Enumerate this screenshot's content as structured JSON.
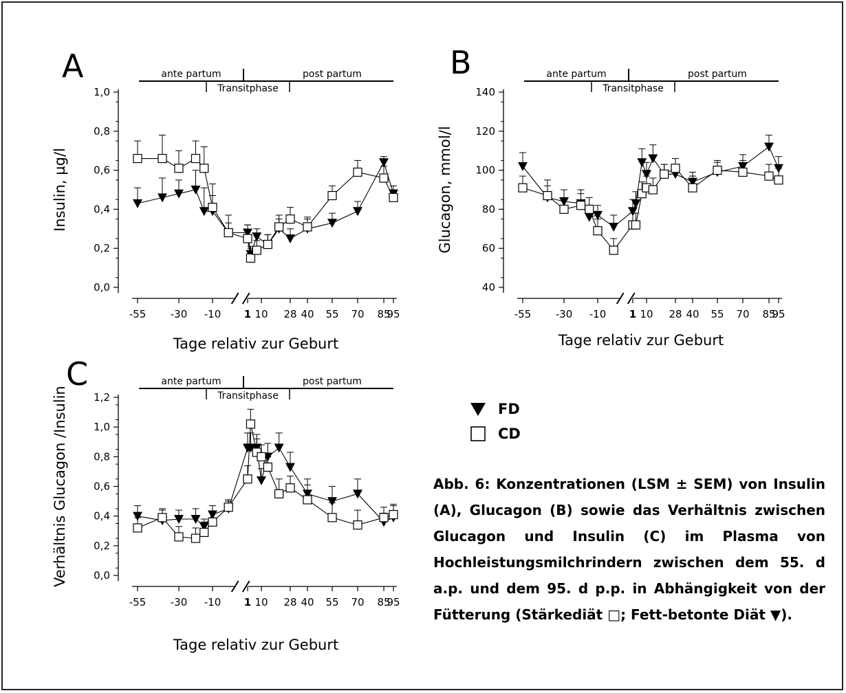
{
  "figure": {
    "caption": "Abb. 6: Konzentrationen (LSM ± SEM) von Insulin (A), Glucagon (B) sowie das Verhältnis zwischen Glucagon und Insulin (C) im Plasma von Hochleistungsmilchrindern zwischen dem 55. d a.p. und dem 95. d p.p. in Abhängigkeit von der Fütterung (Stärkediät □; Fett-betonte Diät ▼)."
  },
  "legend": [
    {
      "symbol": "filled-triangle-down",
      "label": "FD"
    },
    {
      "symbol": "open-square",
      "label": "CD"
    }
  ],
  "phase_labels": {
    "ante": "ante partum",
    "post": "post partum",
    "transit": "Transitphase"
  },
  "colors": {
    "ink": "#000000",
    "marker_open_fill": "#ffffff"
  },
  "chart_data": [
    {
      "panel": "A",
      "type": "line",
      "ylabel": "Insulin, µg/l",
      "xlabel": "Tage relativ zur Geburt",
      "ylim": [
        0.0,
        1.0
      ],
      "yticks": [
        "0,0",
        "0,2",
        "0,4",
        "0,6",
        "0,8",
        "1,0"
      ],
      "xticks": [
        "-55",
        "-30",
        "-10",
        "1",
        "10",
        "28",
        "40",
        "55",
        "70",
        "85",
        "95"
      ],
      "axis_break": "between -10 and 1",
      "series": [
        {
          "name": "FD",
          "marker": "filled-triangle-down",
          "x": [
            -55,
            -40,
            -30,
            -20,
            -15,
            -10,
            -5,
            1,
            3,
            7,
            14,
            21,
            28,
            40,
            55,
            70,
            85,
            95
          ],
          "y": [
            0.43,
            0.46,
            0.48,
            0.5,
            0.39,
            0.39,
            0.28,
            0.28,
            0.17,
            0.26,
            0.22,
            0.3,
            0.25,
            0.3,
            0.33,
            0.39,
            0.64,
            0.48
          ],
          "err": [
            0.08,
            0.1,
            0.07,
            0.1,
            0.12,
            0.08,
            0.05,
            0.04,
            0.04,
            0.04,
            0.05,
            0.05,
            0.05,
            0.05,
            0.05,
            0.05,
            0.03,
            0.04
          ]
        },
        {
          "name": "CD",
          "marker": "open-square",
          "x": [
            -55,
            -40,
            -30,
            -20,
            -15,
            -10,
            -5,
            1,
            3,
            7,
            14,
            21,
            28,
            40,
            55,
            70,
            85,
            95
          ],
          "y": [
            0.66,
            0.66,
            0.61,
            0.66,
            0.61,
            0.41,
            0.28,
            0.25,
            0.15,
            0.19,
            0.22,
            0.31,
            0.35,
            0.31,
            0.47,
            0.59,
            0.56,
            0.46
          ],
          "err": [
            0.09,
            0.12,
            0.09,
            0.09,
            0.11,
            0.12,
            0.09,
            0.07,
            0.05,
            0.05,
            0.05,
            0.06,
            0.06,
            0.05,
            0.05,
            0.06,
            0.06,
            0.04
          ]
        }
      ]
    },
    {
      "panel": "B",
      "type": "line",
      "ylabel": "Glucagon, mmol/l",
      "xlabel": "Tage relativ zur Geburt",
      "ylim": [
        40,
        140
      ],
      "yticks": [
        "40",
        "60",
        "80",
        "100",
        "120",
        "140"
      ],
      "xticks": [
        "-55",
        "-30",
        "-10",
        "1",
        "10",
        "28",
        "40",
        "55",
        "70",
        "85",
        "95"
      ],
      "axis_break": "between -10 and 1",
      "series": [
        {
          "name": "FD",
          "marker": "filled-triangle-down",
          "x": [
            -55,
            -40,
            -30,
            -20,
            -15,
            -10,
            -5,
            1,
            3,
            7,
            10,
            14,
            21,
            28,
            40,
            55,
            70,
            85,
            95
          ],
          "y": [
            102,
            86,
            84,
            83,
            76,
            77,
            71,
            79,
            83,
            104,
            98,
            106,
            98,
            98,
            94,
            99,
            102,
            112,
            101
          ],
          "err": [
            7,
            6,
            6,
            7,
            5,
            5,
            6,
            6,
            6,
            7,
            6,
            7,
            5,
            5,
            5,
            5,
            6,
            6,
            6
          ]
        },
        {
          "name": "CD",
          "marker": "open-square",
          "x": [
            -55,
            -40,
            -30,
            -20,
            -15,
            -10,
            -5,
            1,
            3,
            7,
            10,
            14,
            21,
            28,
            40,
            55,
            70,
            85,
            95
          ],
          "y": [
            91,
            87,
            80,
            82,
            80,
            69,
            59,
            72,
            72,
            88,
            91,
            90,
            98,
            101,
            91,
            100,
            99,
            97,
            95
          ],
          "err": [
            6,
            8,
            6,
            6,
            6,
            6,
            6,
            6,
            6,
            6,
            6,
            6,
            5,
            5,
            6,
            5,
            6,
            6,
            6
          ]
        }
      ]
    },
    {
      "panel": "C",
      "type": "line",
      "ylabel": "Verhältnis Glucagon /Insulin",
      "xlabel": "Tage relativ zur Geburt",
      "ylim": [
        0.0,
        1.2
      ],
      "yticks": [
        "0,0",
        "0,2",
        "0,4",
        "0,6",
        "0,8",
        "1,0",
        "1,2"
      ],
      "xticks": [
        "-55",
        "-30",
        "-10",
        "1",
        "10",
        "28",
        "40",
        "55",
        "70",
        "85",
        "95"
      ],
      "axis_break": "between -10 and 1",
      "series": [
        {
          "name": "FD",
          "marker": "filled-triangle-down",
          "x": [
            -55,
            -40,
            -30,
            -20,
            -15,
            -10,
            -5,
            1,
            3,
            7,
            10,
            14,
            21,
            28,
            40,
            55,
            70,
            85,
            95
          ],
          "y": [
            0.4,
            0.37,
            0.38,
            0.38,
            0.33,
            0.41,
            0.45,
            0.86,
            0.86,
            0.86,
            0.64,
            0.8,
            0.86,
            0.73,
            0.55,
            0.5,
            0.55,
            0.36,
            0.39
          ],
          "err": [
            0.07,
            0.07,
            0.06,
            0.07,
            0.05,
            0.06,
            0.05,
            0.1,
            0.1,
            0.09,
            0.08,
            0.09,
            0.1,
            0.1,
            0.1,
            0.1,
            0.1,
            0.06,
            0.08
          ]
        },
        {
          "name": "CD",
          "marker": "open-square",
          "x": [
            -55,
            -40,
            -30,
            -20,
            -15,
            -10,
            -5,
            1,
            3,
            7,
            10,
            14,
            21,
            28,
            40,
            55,
            70,
            85,
            95
          ],
          "y": [
            0.32,
            0.39,
            0.26,
            0.25,
            0.29,
            0.36,
            0.46,
            0.65,
            1.02,
            0.83,
            0.8,
            0.73,
            0.55,
            0.59,
            0.51,
            0.39,
            0.34,
            0.39,
            0.41
          ],
          "err": [
            0.07,
            0.06,
            0.07,
            0.07,
            0.07,
            0.07,
            0.05,
            0.09,
            0.1,
            0.09,
            0.08,
            0.07,
            0.1,
            0.08,
            0.1,
            0.1,
            0.1,
            0.07,
            0.07
          ]
        }
      ]
    }
  ]
}
